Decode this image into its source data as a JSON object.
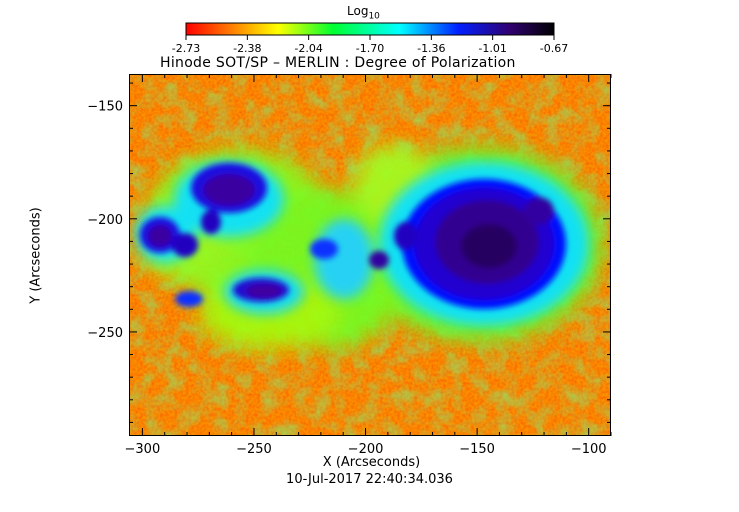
{
  "colorbar": {
    "title_main": "Log",
    "title_sub": "10",
    "ticks": [
      "-2.73",
      "-2.38",
      "-2.04",
      "-1.70",
      "-1.36",
      "-1.01",
      "-0.67"
    ],
    "range": [
      -2.73,
      -0.67
    ],
    "colormap": [
      "#ff0000",
      "#ff8000",
      "#ffff00",
      "#00ff00",
      "#00ffff",
      "#0000ff",
      "#20003a",
      "#000000"
    ]
  },
  "plot": {
    "title": "Hinode SOT/SP – MERLIN : Degree of Polarization",
    "x_label": "X (Arcseconds)",
    "y_label": "Y (Arcseconds)",
    "x_ticks": [
      "−300",
      "−250",
      "−200",
      "−150",
      "−100"
    ],
    "y_ticks": [
      "−150",
      "−200",
      "−250"
    ],
    "x_range": [
      -306,
      -90
    ],
    "y_range": [
      -296,
      -136
    ],
    "timestamp": "10-Jul-2017 22:40:34.036"
  }
}
